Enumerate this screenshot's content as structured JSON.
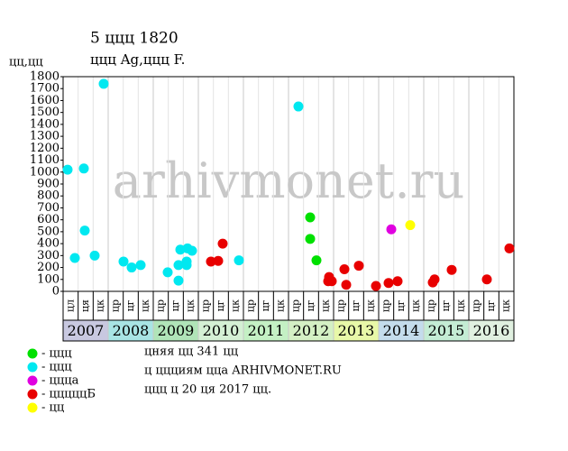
{
  "chart_data": {
    "type": "scatter",
    "title": "5 ццц 1820",
    "subtitle": "ццц Ag,ццц F.",
    "y_label": "цц,цц",
    "watermark": "arhivmonet.ru",
    "xlim": [
      2007,
      2017
    ],
    "ylim": [
      0,
      1800
    ],
    "yticks": [
      0,
      100,
      200,
      300,
      400,
      500,
      600,
      700,
      800,
      900,
      1000,
      1100,
      1200,
      1300,
      1400,
      1500,
      1600,
      1700,
      1800
    ],
    "years": [
      {
        "label": "2007",
        "sub_labels": [
          "цл",
          "ця",
          "цк"
        ],
        "color": "#c8c8e0"
      },
      {
        "label": "2008",
        "sub_labels": [
          "цр",
          "цг",
          "цк"
        ],
        "color": "#a8e4e4"
      },
      {
        "label": "2009",
        "sub_labels": [
          "цр",
          "цг",
          "цк"
        ],
        "color": "#b0e4b8"
      },
      {
        "label": "2010",
        "sub_labels": [
          "цр",
          "цг",
          "цк"
        ],
        "color": "#d4f0d4"
      },
      {
        "label": "2011",
        "sub_labels": [
          "цр",
          "цг",
          "цк"
        ],
        "color": "#c4f0c4"
      },
      {
        "label": "2012",
        "sub_labels": [
          "цр",
          "цг",
          "цк"
        ],
        "color": "#d4f0c4"
      },
      {
        "label": "2013",
        "sub_labels": [
          "цр",
          "цг",
          "цк"
        ],
        "color": "#e8f8a8"
      },
      {
        "label": "2014",
        "sub_labels": [
          "цр",
          "цг",
          "цк"
        ],
        "color": "#c4dcec"
      },
      {
        "label": "2015",
        "sub_labels": [
          "цр",
          "цг",
          "цк"
        ],
        "color": "#c4ecd4"
      },
      {
        "label": "2016",
        "sub_labels": [
          "цр",
          "цг",
          "цк"
        ],
        "color": "#e0f0e0"
      }
    ],
    "series": [
      {
        "name": "- ццц",
        "color": "#00e000",
        "x": [
          2012.48,
          2012.48,
          2012.62
        ],
        "values": [
          620,
          440,
          260
        ]
      },
      {
        "name": "- ццц",
        "color": "#00e8f0",
        "x": [
          2007.1,
          2007.26,
          2007.46,
          2007.48,
          2007.7,
          2007.9,
          2008.34,
          2008.52,
          2008.72,
          2009.32,
          2009.56,
          2009.56,
          2009.6,
          2009.74,
          2009.74,
          2009.76,
          2009.86,
          2010.9,
          2012.22
        ],
        "values": [
          1020,
          280,
          1030,
          510,
          300,
          1740,
          250,
          200,
          220,
          160,
          90,
          220,
          350,
          250,
          220,
          360,
          340,
          260,
          1550
        ]
      },
      {
        "name": "- ццца",
        "color": "#e000e0",
        "x": [
          2014.28
        ],
        "values": [
          520
        ]
      },
      {
        "name": "- цццццБ",
        "color": "#e80000",
        "x": [
          2010.28,
          2010.44,
          2010.54,
          2012.9,
          2012.88,
          2012.96,
          2013.24,
          2013.28,
          2013.56,
          2013.94,
          2014.22,
          2014.42,
          2015.2,
          2015.24,
          2015.62,
          2016.4,
          2016.9
        ],
        "values": [
          250,
          255,
          400,
          120,
          85,
          85,
          185,
          55,
          215,
          45,
          70,
          85,
          75,
          100,
          180,
          100,
          360
        ]
      },
      {
        "name": "- цц",
        "color": "#ffff00",
        "x": [
          2014.7
        ],
        "values": [
          555
        ]
      }
    ],
    "notes": [
      "цняя цц 341 цц",
      "ц ццциям цца ARHIVMONET.RU",
      "ццц ц 20 ця 2017 цц."
    ]
  }
}
